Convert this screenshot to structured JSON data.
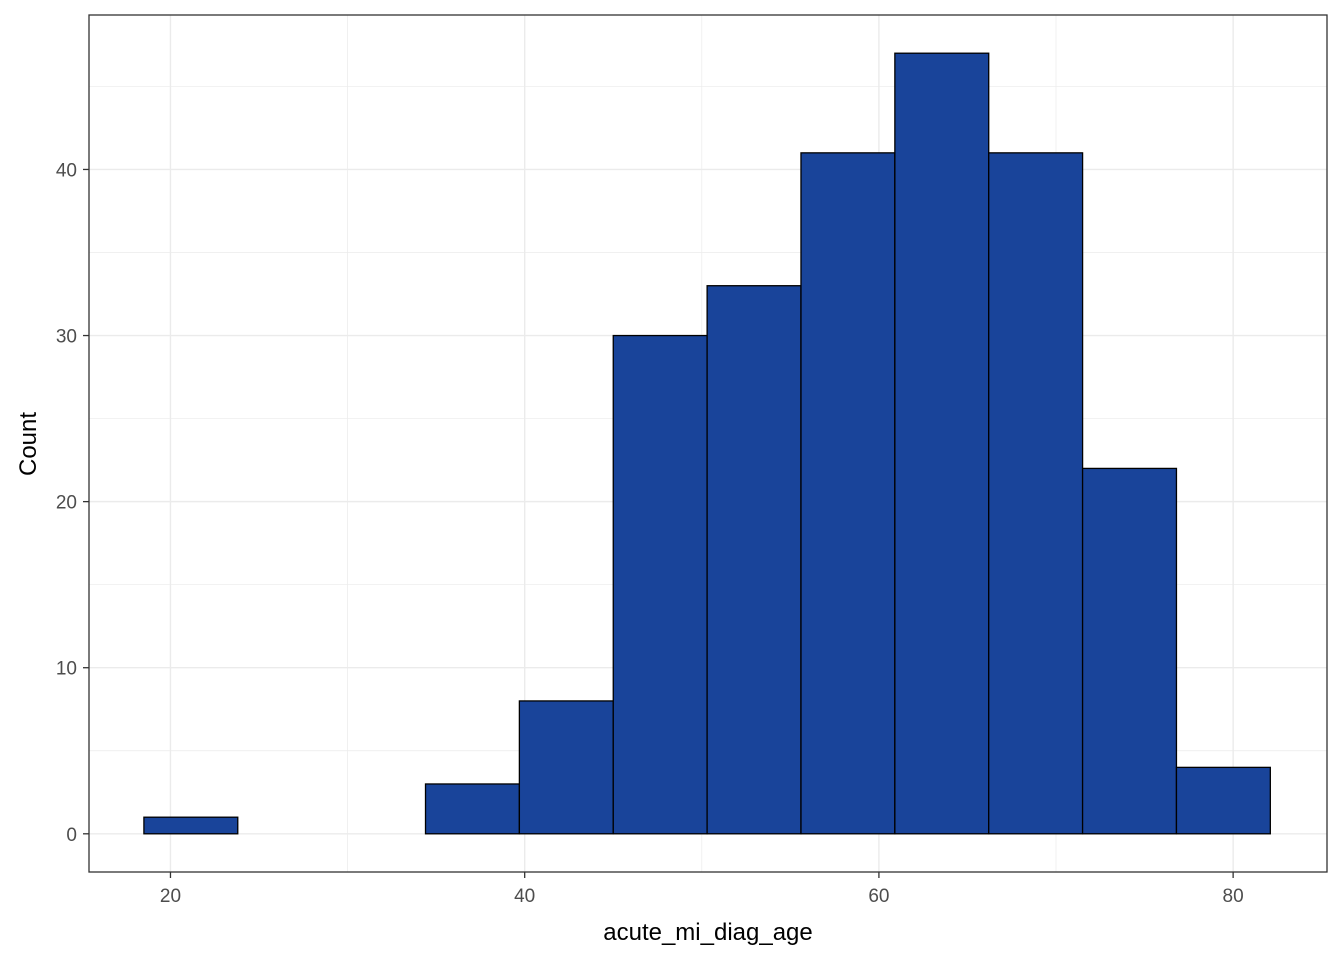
{
  "chart_data": {
    "type": "bar",
    "subtype": "histogram",
    "title": "",
    "xlabel": "acute_mi_diag_age",
    "ylabel": "Count",
    "bin_edges": [
      18.5,
      23.8,
      29.1,
      34.4,
      39.7,
      45.0,
      50.3,
      55.6,
      60.9,
      66.2,
      71.5,
      76.8,
      82.1
    ],
    "values": [
      1,
      0,
      0,
      3,
      8,
      30,
      33,
      41,
      47,
      41,
      22,
      4
    ],
    "xlim": [
      15.4,
      85.3
    ],
    "ylim": [
      -2.3,
      49.3
    ],
    "x_ticks": [
      20,
      40,
      60,
      80
    ],
    "y_ticks": [
      0,
      10,
      20,
      30,
      40
    ],
    "grid": true,
    "theme": "bw",
    "colors": {
      "fill": "#19449A",
      "outline": "#000000",
      "grid": "#ebebeb",
      "panel_border": "#333333"
    }
  }
}
